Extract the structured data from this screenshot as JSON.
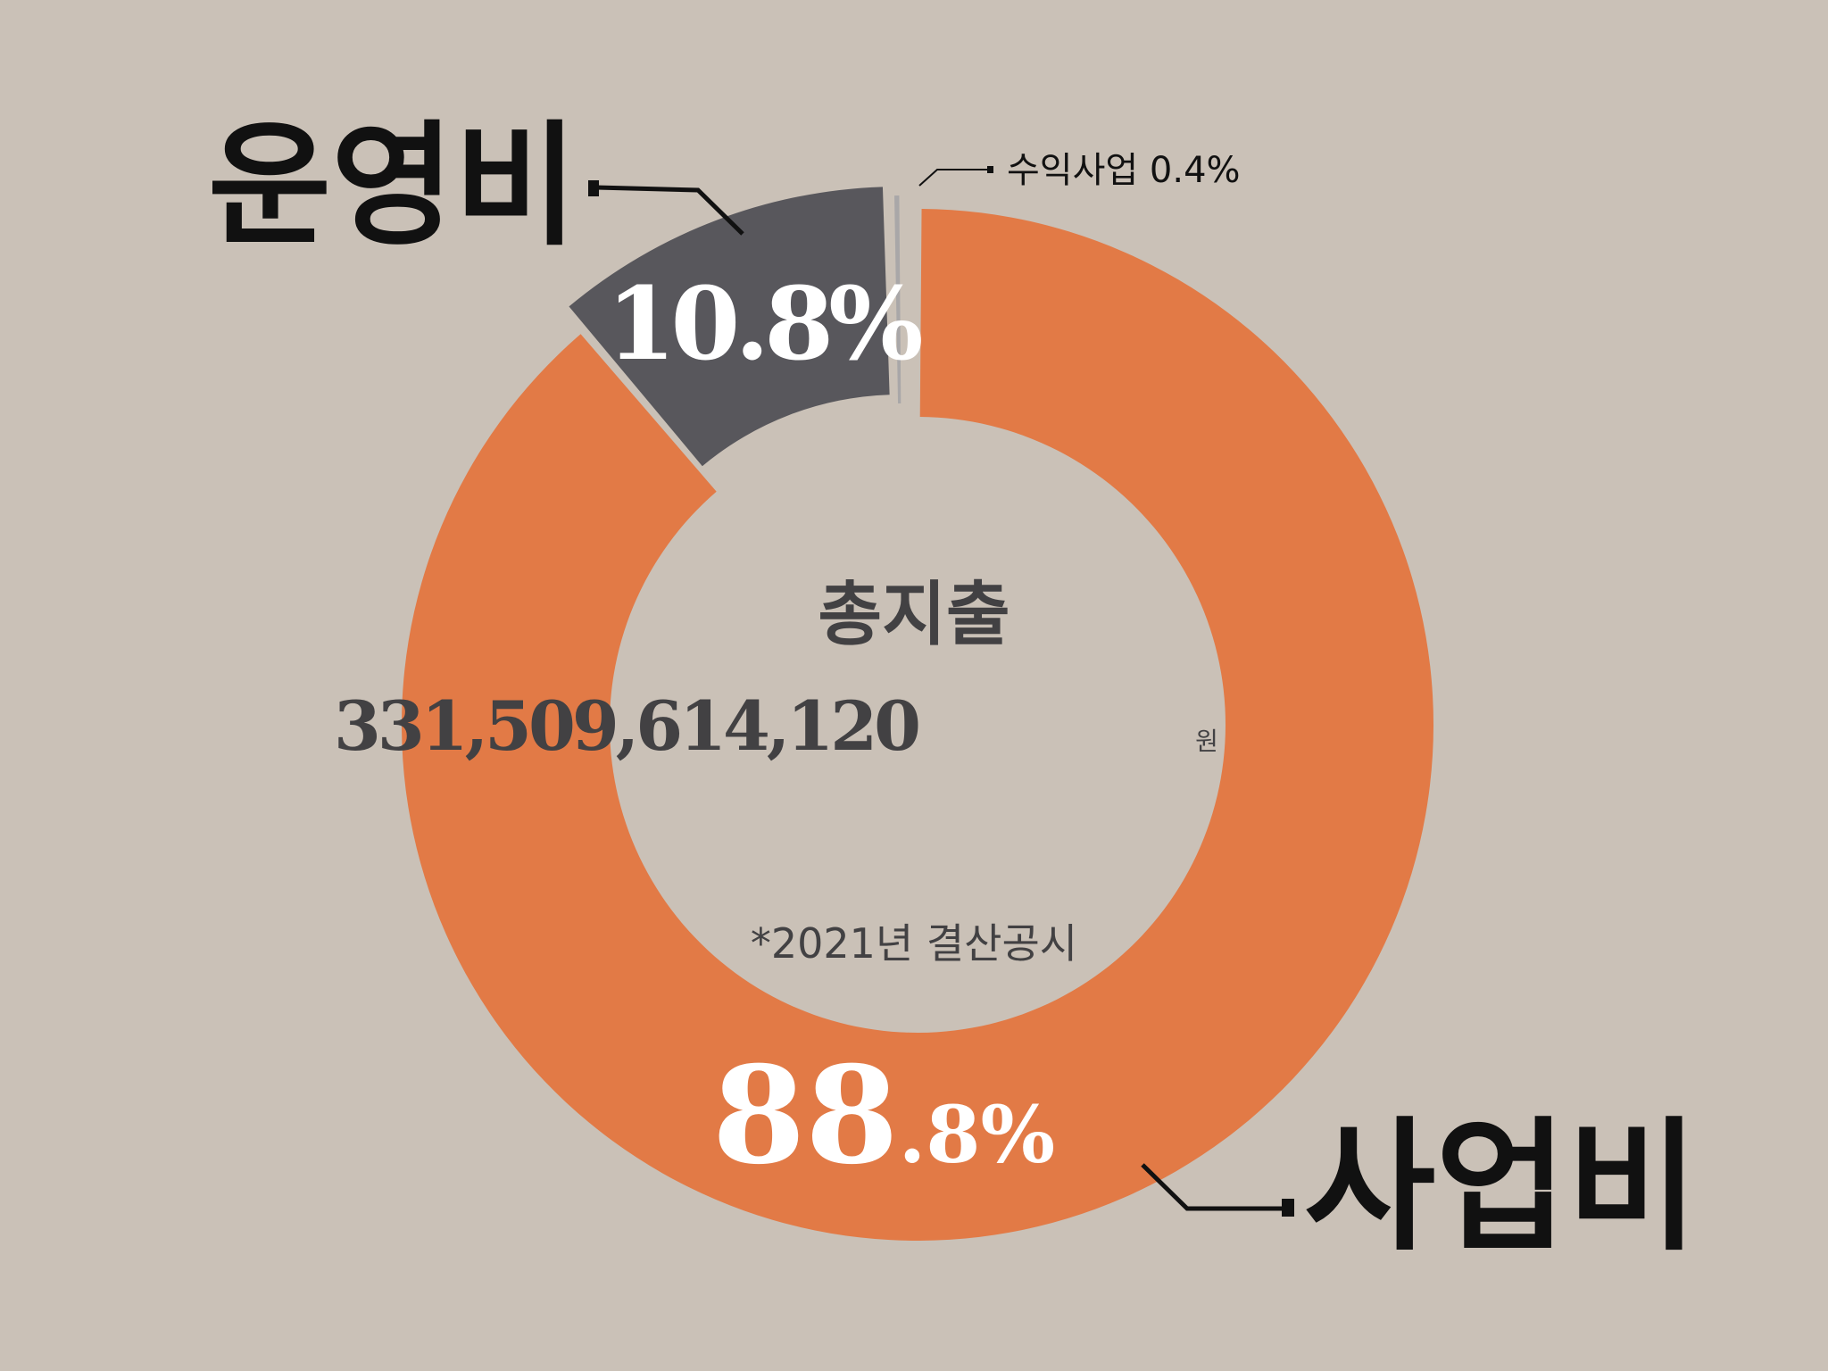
{
  "chart_data": {
    "type": "pie",
    "variant": "donut",
    "categories": [
      "사업비",
      "운영비",
      "수익사업"
    ],
    "values": [
      88.8,
      10.8,
      0.4
    ],
    "colors": [
      "#e27a46",
      "#58575c",
      "#a9a7a8"
    ],
    "background": "#cac1b7",
    "labels": {
      "business": "사업비",
      "operating": "운영비",
      "revenue": "수익사업 0.4%"
    },
    "value_labels": {
      "business_int": "88",
      "business_dec": ".8%",
      "operating": "10.8%"
    },
    "center": {
      "title": "총지출",
      "amount": "331,509,614,120",
      "unit": "원",
      "note": "*2021년 결산공시"
    }
  }
}
